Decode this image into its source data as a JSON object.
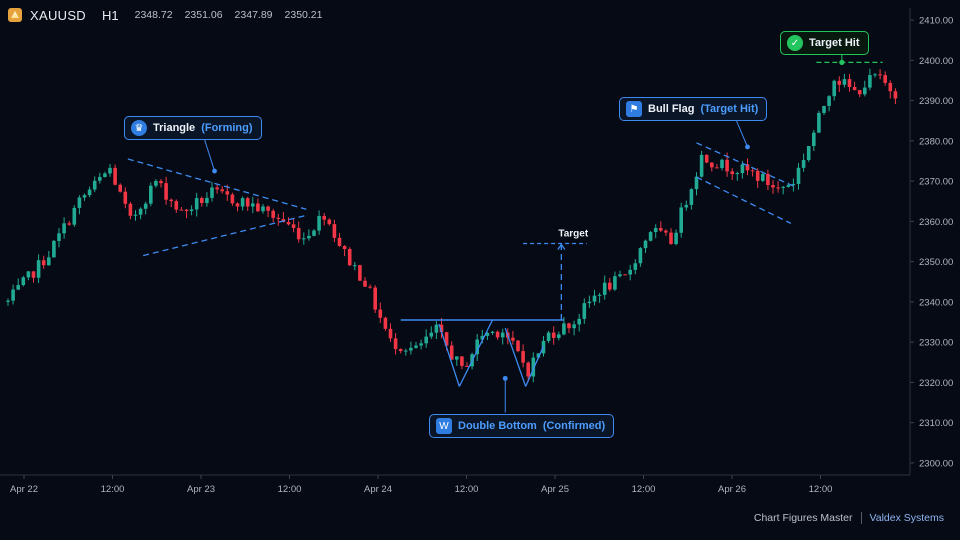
{
  "header": {
    "symbol": "XAUUSD",
    "timeframe": "H1",
    "open": "2348.72",
    "high": "2351.06",
    "low": "2347.89",
    "close": "2350.21"
  },
  "footer": {
    "left": "Chart Figures Master",
    "right": "Valdex Systems"
  },
  "colors": {
    "up": "#22ab94",
    "down": "#f23645",
    "pattern": "#3d8bf2",
    "target_hit": "#22c55e",
    "background": "#060a14"
  },
  "patterns": {
    "triangle": {
      "title": "Triangle",
      "status": "(Forming)",
      "icon": "crown-icon"
    },
    "double_bottom": {
      "title": "Double Bottom",
      "status": "(Confirmed)",
      "icon": "w-shape-icon"
    },
    "bull_flag": {
      "title": "Bull Flag",
      "status": "(Target Hit)",
      "icon": "flag-icon"
    },
    "target_hit": {
      "title": "Target Hit",
      "icon": "check-circle-icon"
    },
    "target_label": "Target"
  },
  "chart_data": {
    "type": "candlestick",
    "symbol": "XAUUSD",
    "interval": "H1",
    "ylim": [
      2297,
      2413
    ],
    "y_ticks": [
      "2410.00",
      "2400.00",
      "2390.00",
      "2380.00",
      "2370.00",
      "2360.00",
      "2350.00",
      "2340.00",
      "2330.00",
      "2320.00",
      "2310.00",
      "2300.00"
    ],
    "x_ticks": [
      "Apr 22",
      "12:00",
      "Apr 23",
      "12:00",
      "Apr 24",
      "12:00",
      "Apr 25",
      "12:00",
      "Apr 26",
      "12:00"
    ],
    "close_path": [
      {
        "t": 0,
        "v": 2340
      },
      {
        "t": 8,
        "v": 2352
      },
      {
        "t": 14,
        "v": 2365
      },
      {
        "t": 20,
        "v": 2373
      },
      {
        "t": 24,
        "v": 2360
      },
      {
        "t": 29,
        "v": 2370
      },
      {
        "t": 34,
        "v": 2362
      },
      {
        "t": 40,
        "v": 2367
      },
      {
        "t": 48,
        "v": 2364
      },
      {
        "t": 54,
        "v": 2360
      },
      {
        "t": 58,
        "v": 2356
      },
      {
        "t": 62,
        "v": 2362
      },
      {
        "t": 66,
        "v": 2352
      },
      {
        "t": 70,
        "v": 2345
      },
      {
        "t": 75,
        "v": 2330
      },
      {
        "t": 80,
        "v": 2328
      },
      {
        "t": 84,
        "v": 2333
      },
      {
        "t": 89,
        "v": 2323
      },
      {
        "t": 93,
        "v": 2332
      },
      {
        "t": 97,
        "v": 2333
      },
      {
        "t": 102,
        "v": 2323
      },
      {
        "t": 106,
        "v": 2332
      },
      {
        "t": 111,
        "v": 2335
      },
      {
        "t": 116,
        "v": 2343
      },
      {
        "t": 121,
        "v": 2346
      },
      {
        "t": 126,
        "v": 2358
      },
      {
        "t": 130,
        "v": 2355
      },
      {
        "t": 136,
        "v": 2376
      },
      {
        "t": 140,
        "v": 2374
      },
      {
        "t": 146,
        "v": 2372
      },
      {
        "t": 151,
        "v": 2368
      },
      {
        "t": 154,
        "v": 2370
      },
      {
        "t": 158,
        "v": 2382
      },
      {
        "t": 162,
        "v": 2396
      },
      {
        "t": 166,
        "v": 2392
      },
      {
        "t": 170,
        "v": 2396
      },
      {
        "t": 174,
        "v": 2392
      }
    ],
    "patterns": [
      {
        "name": "Triangle",
        "status": "Forming"
      },
      {
        "name": "Double Bottom",
        "status": "Confirmed",
        "neckline": 2335.5,
        "target": 2354.5
      },
      {
        "name": "Bull Flag",
        "status": "Target Hit",
        "target": 2399.5
      }
    ]
  }
}
